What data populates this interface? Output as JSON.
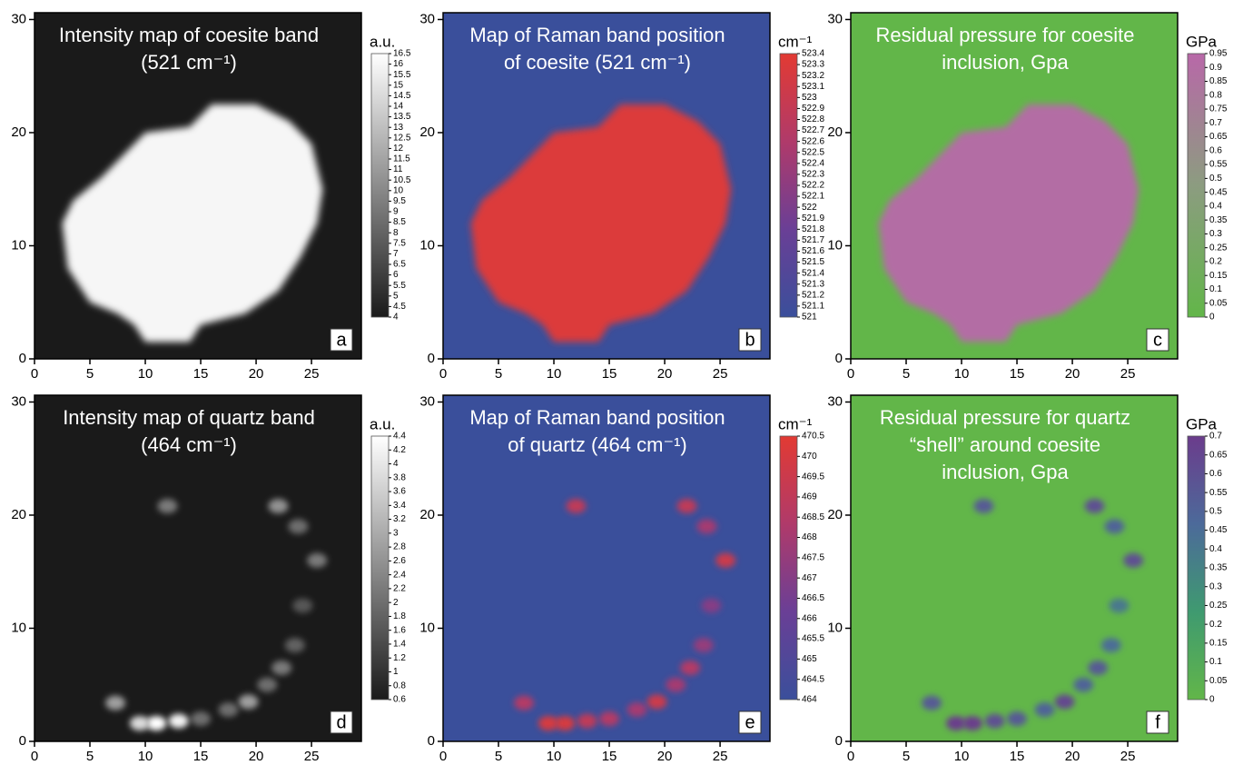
{
  "chart_data": [
    {
      "type": "heatmap",
      "panel": "a",
      "title": [
        "Intensity  map of coesite band",
        "(521 cm⁻¹)"
      ],
      "colorbar_label": "a.u.",
      "xlim": [
        0,
        29.5
      ],
      "ylim": [
        0,
        30.6
      ],
      "xticks": [
        0,
        5,
        10,
        15,
        20,
        25
      ],
      "yticks": [
        0,
        10,
        20,
        30
      ],
      "clim": [
        4,
        16.5
      ],
      "cticks": [
        4,
        4.5,
        5,
        5.5,
        6,
        6.5,
        7,
        7.5,
        8,
        8.5,
        9,
        9.5,
        10,
        10.5,
        11,
        11.5,
        12,
        12.5,
        13,
        13.5,
        14,
        14.5,
        15,
        15.5,
        16,
        16.5
      ],
      "colormap": [
        "#1a1a1a",
        "#ffffff"
      ],
      "inclusion": {
        "x": [
          2.5,
          3,
          5,
          7.5,
          9,
          10,
          14,
          15,
          19,
          22,
          24,
          25.5,
          26,
          25,
          23,
          20,
          16,
          14,
          10,
          6,
          3.5
        ],
        "y": [
          12,
          8,
          5,
          4,
          3,
          1.5,
          1.5,
          3,
          4,
          6,
          9,
          12,
          15,
          19,
          21,
          22.5,
          22.5,
          20.5,
          20,
          16,
          14
        ],
        "value": 16
      }
    },
    {
      "type": "heatmap",
      "panel": "b",
      "title": [
        "Map of Raman band position",
        "of coesite (521 cm⁻¹)"
      ],
      "colorbar_label": "cm⁻¹",
      "xlim": [
        0,
        29.5
      ],
      "ylim": [
        0,
        30.6
      ],
      "xticks": [
        0,
        5,
        10,
        15,
        20,
        25
      ],
      "yticks": [
        0,
        10,
        20,
        30
      ],
      "clim": [
        521,
        523.4
      ],
      "cticks": [
        521,
        521.1,
        521.2,
        521.3,
        521.4,
        521.5,
        521.6,
        521.7,
        521.8,
        521.9,
        522,
        522.1,
        522.2,
        522.3,
        522.4,
        522.5,
        522.6,
        522.7,
        522.8,
        522.9,
        523,
        523.1,
        523.2,
        523.3,
        523.4
      ],
      "colormap": [
        "#3a4f9b",
        "#6a3f96",
        "#b03a6a",
        "#e23a33"
      ],
      "inclusion": {
        "x": [
          2.5,
          3,
          5,
          7.5,
          9,
          10,
          14,
          15,
          19,
          22,
          24,
          25.5,
          26,
          25,
          23,
          20,
          16,
          14,
          10,
          6,
          3.5
        ],
        "y": [
          12,
          8,
          5,
          4,
          3,
          1.5,
          1.5,
          3,
          4,
          6,
          9,
          12,
          15,
          19,
          21,
          22.5,
          22.5,
          20.5,
          20,
          16,
          14
        ],
        "value": 523.3
      }
    },
    {
      "type": "heatmap",
      "panel": "c",
      "title": [
        "Residual pressure for coesite",
        "inclusion, Gpa"
      ],
      "colorbar_label": "GPa",
      "xlim": [
        0,
        29.5
      ],
      "ylim": [
        0,
        30.6
      ],
      "xticks": [
        0,
        5,
        10,
        15,
        20,
        25
      ],
      "yticks": [
        0,
        10,
        20,
        30
      ],
      "clim": [
        0,
        0.95
      ],
      "cticks": [
        0,
        0.05,
        0.1,
        0.15,
        0.2,
        0.25,
        0.3,
        0.35,
        0.4,
        0.45,
        0.5,
        0.55,
        0.6,
        0.65,
        0.7,
        0.75,
        0.8,
        0.85,
        0.9,
        0.95
      ],
      "colormap": [
        "#62b649",
        "#8c9c80",
        "#b868a8"
      ],
      "inclusion": {
        "x": [
          2.5,
          3,
          5,
          7.5,
          9,
          10,
          14,
          15,
          19,
          22,
          24,
          25.5,
          26,
          25,
          23,
          20,
          16,
          14,
          10,
          6,
          3.5
        ],
        "y": [
          12,
          8,
          5,
          4,
          3,
          1.5,
          1.5,
          3,
          4,
          6,
          9,
          12,
          15,
          19,
          21,
          22.5,
          22.5,
          20.5,
          20,
          16,
          14
        ],
        "value": 0.9
      }
    },
    {
      "type": "heatmap",
      "panel": "d",
      "title": [
        "Intensity  map of quartz band",
        "(464 cm⁻¹)"
      ],
      "colorbar_label": "a.u.",
      "xlim": [
        0,
        29.5
      ],
      "ylim": [
        0,
        30.6
      ],
      "xticks": [
        0,
        5,
        10,
        15,
        20,
        25
      ],
      "yticks": [
        0,
        10,
        20,
        30
      ],
      "clim": [
        0.6,
        4.4
      ],
      "cticks": [
        0.6,
        0.8,
        1,
        1.2,
        1.4,
        1.6,
        1.8,
        2,
        2.2,
        2.4,
        2.6,
        2.8,
        3,
        3.2,
        3.4,
        3.6,
        3.8,
        4,
        4.2,
        4.4
      ],
      "colormap": [
        "#1a1a1a",
        "#ffffff"
      ],
      "spots": {
        "x": [
          12,
          22,
          23.8,
          25.5,
          24.2,
          23.5,
          22.3,
          21,
          19.3,
          17.5,
          15,
          13,
          11,
          9.5,
          7.3
        ],
        "y": [
          20.8,
          20.8,
          19,
          16,
          12,
          8.5,
          6.5,
          5,
          3.5,
          2.8,
          2,
          1.8,
          1.6,
          1.6,
          3.4
        ],
        "values": [
          2.2,
          2.6,
          2,
          2.2,
          1.6,
          1.8,
          2.2,
          2,
          2.8,
          2,
          2,
          4.2,
          4.4,
          3.8,
          2.8
        ]
      }
    },
    {
      "type": "heatmap",
      "panel": "e",
      "title": [
        "Map of Raman band position",
        "of quartz (464 cm⁻¹)"
      ],
      "colorbar_label": "cm⁻¹",
      "xlim": [
        0,
        29.5
      ],
      "ylim": [
        0,
        30.6
      ],
      "xticks": [
        0,
        5,
        10,
        15,
        20,
        25
      ],
      "yticks": [
        0,
        10,
        20,
        30
      ],
      "clim": [
        464,
        470.5
      ],
      "cticks": [
        464,
        464.5,
        465,
        465.5,
        466,
        466.5,
        467,
        467.5,
        468,
        468.5,
        469,
        469.5,
        470,
        470.5
      ],
      "colormap": [
        "#3a4f9b",
        "#6a3f96",
        "#b03a6a",
        "#e23a33"
      ],
      "spots": {
        "x": [
          12,
          22,
          23.8,
          25.5,
          24.2,
          23.5,
          22.3,
          21,
          19.3,
          17.5,
          15,
          13,
          11,
          9.5,
          7.3
        ],
        "y": [
          20.8,
          20.8,
          19,
          16,
          12,
          8.5,
          6.5,
          5,
          3.5,
          2.8,
          2,
          1.8,
          1.6,
          1.6,
          3.4
        ],
        "values": [
          469,
          469,
          468,
          469.5,
          467,
          467.5,
          468.5,
          468,
          469.5,
          468,
          468.5,
          469,
          470,
          470,
          468.5
        ]
      }
    },
    {
      "type": "heatmap",
      "panel": "f",
      "title": [
        "Residual pressure for quartz",
        "“shell”  around coesite",
        "inclusion, Gpa"
      ],
      "colorbar_label": "GPa",
      "xlim": [
        0,
        29.5
      ],
      "ylim": [
        0,
        30.6
      ],
      "xticks": [
        0,
        5,
        10,
        15,
        20,
        25
      ],
      "yticks": [
        0,
        10,
        20,
        30
      ],
      "clim": [
        0,
        0.7
      ],
      "cticks": [
        0,
        0.05,
        0.1,
        0.15,
        0.2,
        0.25,
        0.3,
        0.35,
        0.4,
        0.45,
        0.5,
        0.55,
        0.6,
        0.65,
        0.7
      ],
      "colormap": [
        "#62b649",
        "#3f9a70",
        "#4c6a9a",
        "#6b3c8c"
      ],
      "spots": {
        "x": [
          12,
          22,
          23.8,
          25.5,
          24.2,
          23.5,
          22.3,
          21,
          19.3,
          17.5,
          15,
          13,
          11,
          9.5,
          7.3
        ],
        "y": [
          20.8,
          20.8,
          19,
          16,
          12,
          8.5,
          6.5,
          5,
          3.5,
          2.8,
          2,
          1.8,
          1.6,
          1.6,
          3.4
        ],
        "values": [
          0.55,
          0.6,
          0.5,
          0.6,
          0.4,
          0.45,
          0.55,
          0.5,
          0.65,
          0.5,
          0.55,
          0.6,
          0.7,
          0.7,
          0.55
        ]
      }
    }
  ]
}
